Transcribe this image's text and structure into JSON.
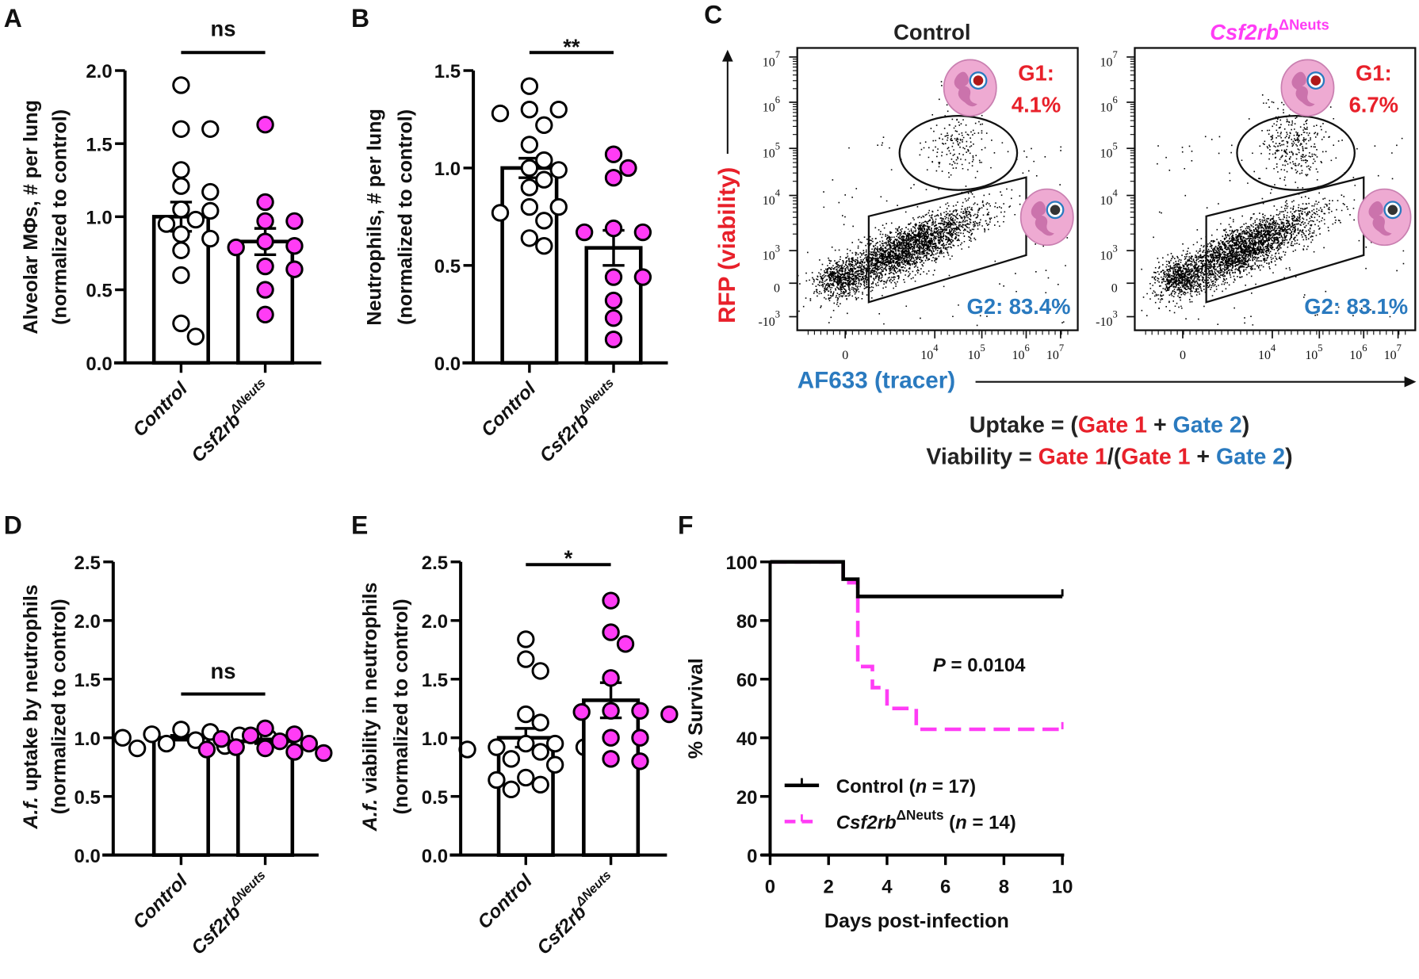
{
  "chart_data": [
    {
      "panel": "A",
      "type": "bar",
      "ylabel_italic": "",
      "ylabel_line1": "Alveolar MΦs, # per lung",
      "ylabel_line2": "(normalized to control)",
      "ylim": [
        0,
        2.0
      ],
      "yticks": [
        0,
        0.5,
        1.0,
        1.5,
        2.0
      ],
      "ytick_labels": [
        "0.0",
        "0.5",
        "1.0",
        "1.5",
        "2.0"
      ],
      "significance": "ns",
      "series": [
        {
          "name": "Control",
          "sup": "",
          "mean": 1.0,
          "sem": 0.1,
          "color": "#ffffff",
          "points": [
            1.9,
            1.6,
            1.6,
            1.32,
            1.21,
            1.17,
            1.05,
            1.04,
            0.98,
            0.95,
            0.88,
            0.85,
            0.77,
            0.6,
            0.27,
            0.18
          ]
        },
        {
          "name": "Csf2rb",
          "sup": "ΔNeuts",
          "mean": 0.83,
          "sem": 0.09,
          "color": "#ff3cf5",
          "points": [
            1.63,
            1.1,
            0.97,
            0.97,
            0.83,
            0.8,
            0.79,
            0.66,
            0.64,
            0.5,
            0.33
          ]
        }
      ]
    },
    {
      "panel": "B",
      "type": "bar",
      "ylabel_italic": "",
      "ylabel_line1": "Neutrophils, # per lung",
      "ylabel_line2": "(normalized to control)",
      "ylim": [
        0,
        1.5
      ],
      "yticks": [
        0,
        0.5,
        1.0,
        1.5
      ],
      "ytick_labels": [
        "0.0",
        "0.5",
        "1.0",
        "1.5"
      ],
      "significance": "**",
      "series": [
        {
          "name": "Control",
          "sup": "",
          "mean": 1.0,
          "sem": 0.05,
          "color": "#ffffff",
          "points": [
            1.42,
            1.3,
            1.3,
            1.28,
            1.22,
            1.12,
            1.04,
            1.0,
            0.99,
            0.94,
            0.9,
            0.8,
            0.8,
            0.77,
            0.73,
            0.64,
            0.6
          ]
        },
        {
          "name": "Csf2rb",
          "sup": "ΔNeuts",
          "mean": 0.59,
          "sem": 0.09,
          "color": "#ff3cf5",
          "points": [
            1.07,
            1.0,
            0.95,
            0.69,
            0.67,
            0.67,
            0.44,
            0.44,
            0.32,
            0.23,
            0.12
          ]
        }
      ]
    },
    {
      "panel": "C",
      "type": "scatter",
      "plots": [
        {
          "title": "Control",
          "title_sup": "",
          "g1_label": "G1:",
          "g1_value": "4.1%",
          "g2_text": "G2: 83.4%"
        },
        {
          "title": "Csf2rb",
          "title_sup": "ΔNeuts",
          "g1_label": "G1:",
          "g1_value": "6.7%",
          "g2_text": "G2: 83.1%"
        }
      ],
      "ylabel": "RFP (viability)",
      "xlabel": "AF633 (tracer)",
      "yticks": [
        {
          "base": "10",
          "exp": "7"
        },
        {
          "base": "10",
          "exp": "6"
        },
        {
          "base": "10",
          "exp": "5"
        },
        {
          "base": "10",
          "exp": "4"
        },
        {
          "base": "10",
          "exp": "3"
        },
        {
          "base": "0",
          "exp": ""
        },
        {
          "base": "-10",
          "exp": "3"
        }
      ],
      "xticks": [
        {
          "base": "0",
          "exp": ""
        },
        {
          "base": "10",
          "exp": "4"
        },
        {
          "base": "10",
          "exp": "5"
        },
        {
          "base": "10",
          "exp": "6"
        },
        {
          "base": "10",
          "exp": "7"
        }
      ],
      "formulas": [
        [
          {
            "t": "Uptake = (",
            "c": "#222222"
          },
          {
            "t": "Gate 1",
            "c": "#e8202a"
          },
          {
            "t": " + ",
            "c": "#222222"
          },
          {
            "t": "Gate 2",
            "c": "#2a7abf"
          },
          {
            "t": ")",
            "c": "#222222"
          }
        ],
        [
          {
            "t": "Viability = ",
            "c": "#222222"
          },
          {
            "t": "Gate 1",
            "c": "#e8202a"
          },
          {
            "t": "/(",
            "c": "#222222"
          },
          {
            "t": "Gate 1",
            "c": "#e8202a"
          },
          {
            "t": " + ",
            "c": "#222222"
          },
          {
            "t": "Gate 2",
            "c": "#2a7abf"
          },
          {
            "t": ")",
            "c": "#222222"
          }
        ]
      ],
      "colors": {
        "gate1": "#e8202a",
        "gate2": "#2a7abf",
        "knockout": "#ff3cf5"
      }
    },
    {
      "panel": "D",
      "type": "bar",
      "ylabel_italic": "A.f.",
      "ylabel_line1": " uptake by neutrophils",
      "ylabel_line2": "(normalized to control)",
      "ylim": [
        0,
        2.5
      ],
      "yticks": [
        0,
        0.5,
        1.0,
        1.5,
        2.0,
        2.5
      ],
      "ytick_labels": [
        "0.0",
        "0.5",
        "1.0",
        "1.5",
        "2.0",
        "2.5"
      ],
      "significance": "ns",
      "series": [
        {
          "name": "Control",
          "sup": "",
          "mean": 1.0,
          "sem": 0.02,
          "color": "#ffffff",
          "points": [
            1.07,
            1.05,
            1.03,
            1.02,
            1.0,
            1.0,
            0.98,
            0.95,
            0.93,
            0.91,
            0.9
          ]
        },
        {
          "name": "Csf2rb",
          "sup": "ΔNeuts",
          "mean": 0.97,
          "sem": 0.02,
          "color": "#ff3cf5",
          "points": [
            1.08,
            1.03,
            1.02,
            0.99,
            0.97,
            0.95,
            0.92,
            0.91,
            0.9,
            0.88,
            0.87
          ]
        }
      ]
    },
    {
      "panel": "E",
      "type": "bar",
      "ylabel_italic": "A.f.",
      "ylabel_line1": " viability in neutrophils",
      "ylabel_line2": "(normalized to control)",
      "ylim": [
        0,
        2.5
      ],
      "yticks": [
        0,
        0.5,
        1.0,
        1.5,
        2.0,
        2.5
      ],
      "ytick_labels": [
        "0.0",
        "0.5",
        "1.0",
        "1.5",
        "2.0",
        "2.5"
      ],
      "significance": "*",
      "series": [
        {
          "name": "Control",
          "sup": "",
          "mean": 1.0,
          "sem": 0.08,
          "color": "#ffffff",
          "points": [
            1.84,
            1.67,
            1.57,
            1.2,
            1.13,
            0.95,
            0.95,
            0.92,
            0.92,
            0.9,
            0.88,
            0.82,
            0.77,
            0.66,
            0.64,
            0.6,
            0.56
          ]
        },
        {
          "name": "Csf2rb",
          "sup": "ΔNeuts",
          "mean": 1.32,
          "sem": 0.15,
          "color": "#ff3cf5",
          "points": [
            2.17,
            1.9,
            1.8,
            1.51,
            1.23,
            1.23,
            1.22,
            1.2,
            1.0,
            1.0,
            0.82,
            0.8
          ]
        }
      ]
    },
    {
      "panel": "F",
      "type": "line",
      "ylabel": "% Survival",
      "xlabel": "Days post-infection",
      "xlim": [
        0,
        10
      ],
      "ylim": [
        0,
        100
      ],
      "xticks": [
        0,
        2,
        4,
        6,
        8,
        10
      ],
      "xtick_labels": [
        "0",
        "2",
        "4",
        "6",
        "8",
        "10"
      ],
      "yticks": [
        0,
        20,
        40,
        60,
        80,
        100
      ],
      "ytick_labels": [
        "0",
        "20",
        "40",
        "60",
        "80",
        "100"
      ],
      "p_var": "P",
      "p_text": " = 0.0104",
      "legend_position": "bottom-left",
      "series": [
        {
          "name": "Control",
          "sup": "",
          "n_pre": " (",
          "n_var": "n",
          "n_post": " = 17)",
          "color": "#000000",
          "dashed": false,
          "x": [
            0,
            2.5,
            3,
            10
          ],
          "y": [
            100,
            94.1,
            88.2,
            88.2
          ]
        },
        {
          "name": "Csf2rb",
          "sup": "ΔNeuts",
          "n_pre": " (",
          "n_var": "n",
          "n_post": " = 14)",
          "color": "#ff3cf5",
          "dashed": true,
          "x": [
            0,
            2.5,
            3,
            3.5,
            4,
            5,
            10
          ],
          "y": [
            100,
            92.9,
            64.3,
            57.1,
            50,
            42.9,
            42.9
          ]
        }
      ]
    }
  ]
}
